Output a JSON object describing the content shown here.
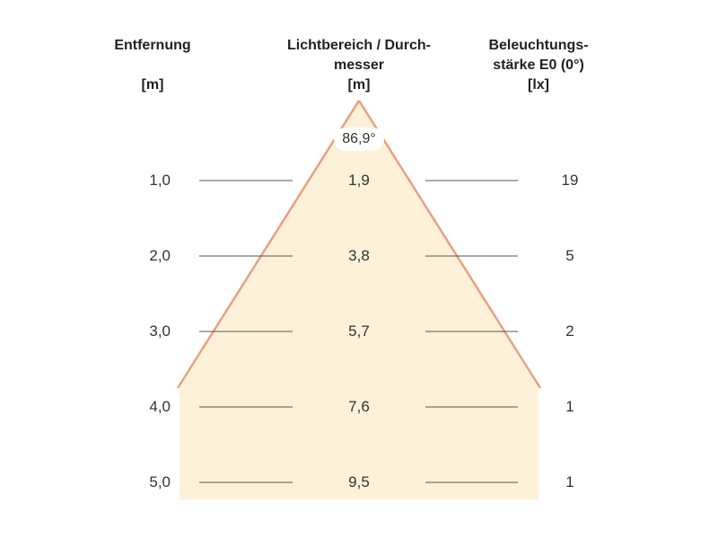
{
  "headers": {
    "distance": {
      "line1": "Entfernung",
      "line2": "",
      "unit": "[m]"
    },
    "diameter": {
      "line1": "Lichtbereich / Durch-",
      "line2": "messer",
      "unit": "[m]"
    },
    "illuminance": {
      "line1": "Beleuchtungs-",
      "line2": "stärke E0 (0°)",
      "unit": "[lx]"
    }
  },
  "beam_angle": "86,9°",
  "rows": [
    {
      "distance": "1,0",
      "diameter": "1,9",
      "illuminance": "19"
    },
    {
      "distance": "2,0",
      "diameter": "3,8",
      "illuminance": "5"
    },
    {
      "distance": "3,0",
      "diameter": "5,7",
      "illuminance": "2"
    },
    {
      "distance": "4,0",
      "diameter": "7,6",
      "illuminance": "1"
    },
    {
      "distance": "5,0",
      "diameter": "9,5",
      "illuminance": "1"
    }
  ],
  "colors": {
    "cone_fill": "#fdf2d9",
    "cone_edge": "#e9a07c",
    "guide_line": "#555555",
    "text": "#333333"
  }
}
